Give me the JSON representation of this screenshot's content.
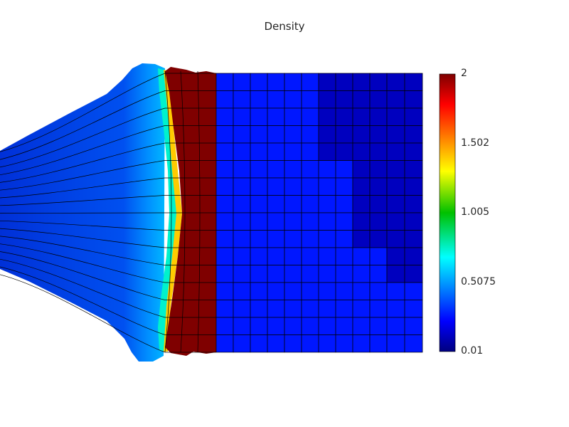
{
  "chart_data": {
    "type": "heatmap",
    "title": "Density",
    "colormap": "jet",
    "colorbar": {
      "min": 0.01,
      "max": 2,
      "ticks": [
        {
          "value": 2,
          "label": "2"
        },
        {
          "value": 1.502,
          "label": "1.502"
        },
        {
          "value": 1.005,
          "label": "1.005"
        },
        {
          "value": 0.5075,
          "label": "0.5075"
        },
        {
          "value": 0.01,
          "label": "0.01"
        }
      ]
    },
    "regions": {
      "expanded_zone_density": 0.28,
      "interface_density": 0.75,
      "compressed_zone_density": 2.0,
      "unshocked_zone_density": 0.27,
      "low_density_corner": 0.12
    },
    "grid_lines": true,
    "colors": {
      "mesh_line": "#000000",
      "background": "#ffffff"
    }
  }
}
